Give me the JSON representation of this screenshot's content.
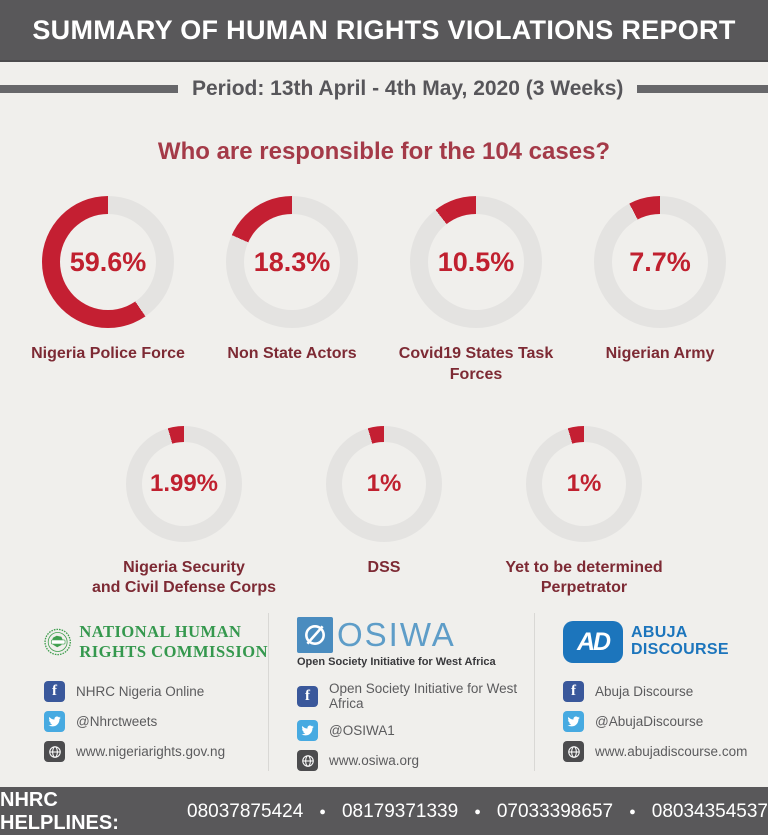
{
  "header": {
    "title": "SUMMARY OF HUMAN RIGHTS VIOLATIONS REPORT"
  },
  "period": {
    "text": "Period: 13th April - 4th May, 2020 (3 Weeks)"
  },
  "question": "Who are responsible for the 104 cases?",
  "chart_data": {
    "type": "pie",
    "subtype": "donut-multiples",
    "title": "Who are responsible for the 104 cases?",
    "total_cases": 104,
    "unit": "%",
    "arc_color": "#c41f32",
    "track_color": "#e4e3e1",
    "arc_direction": "counterclockwise-from-top",
    "items": [
      {
        "label": "Nigeria Police Force",
        "label_lines": "Nigeria Police Force",
        "value": 59.6,
        "display": "59.6%"
      },
      {
        "label": "Non State Actors",
        "label_lines": "Non State Actors",
        "value": 18.3,
        "display": "18.3%"
      },
      {
        "label": "Covid19 States Task Forces",
        "label_lines": "Covid19 States Task Forces",
        "value": 10.5,
        "display": "10.5%"
      },
      {
        "label": "Nigerian Army",
        "label_lines": "Nigerian Army",
        "value": 7.7,
        "display": "7.7%"
      },
      {
        "label": "Nigeria Security and Civil Defense Corps",
        "label_lines": "Nigeria Security\nand Civil Defense Corps",
        "value": 1.99,
        "display": "1.99%"
      },
      {
        "label": "DSS",
        "label_lines": "DSS",
        "value": 1,
        "display": "1%"
      },
      {
        "label": "Yet to be determined Perpetrator",
        "label_lines": "Yet to be determined\nPerpetrator",
        "value": 1,
        "display": "1%"
      }
    ]
  },
  "footer": {
    "orgs": [
      {
        "name": "National Human Rights Commission",
        "logo_lines": [
          "NATIONAL HUMAN",
          "RIGHTS COMMISSION"
        ],
        "facebook": "NHRC Nigeria Online",
        "twitter": "@Nhrctweets",
        "web": "www.nigeriarights.gov.ng"
      },
      {
        "name": "OSIWA",
        "logo_text": "OSIWA",
        "tagline": "Open Society Initiative for West Africa",
        "facebook": "Open Society Initiative for West Africa",
        "twitter": "@OSIWA1",
        "web": "www.osiwa.org"
      },
      {
        "name": "Abuja Discourse",
        "monogram": "AD",
        "logo_lines": "ABUJA\nDISCOURSE",
        "facebook": "Abuja Discourse",
        "twitter": "@AbujaDiscourse",
        "web": "www.abujadiscourse.com"
      }
    ]
  },
  "helplines": {
    "label": "NHRC HELPLINES:",
    "numbers": [
      "08037875424",
      "08179371339",
      "07033398657",
      "08034354537"
    ]
  }
}
